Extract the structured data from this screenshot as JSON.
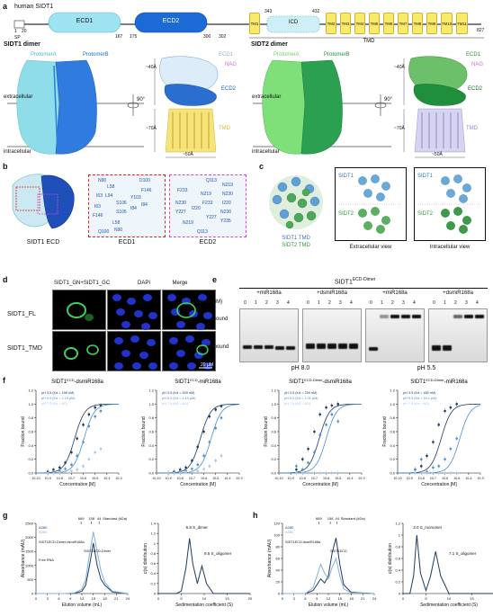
{
  "panels": {
    "a": "a",
    "b": "b",
    "c": "c",
    "d": "d",
    "e": "e",
    "f": "f",
    "g": "g",
    "h": "h"
  },
  "panel_a": {
    "title": "human SIDT1",
    "domains": [
      "SP",
      "ECD1",
      "ECD2",
      "ICD",
      "TMD"
    ],
    "residues": [
      "1",
      "20",
      "167",
      "175",
      "300",
      "302",
      "343",
      "432",
      "827"
    ],
    "tm_labels": [
      "TM1",
      "TM2",
      "TM3",
      "TM4",
      "TM5",
      "TM6",
      "TM7",
      "TM8",
      "TM9",
      "TM10",
      "TM11"
    ],
    "sidt1_dimer": {
      "title": "SIDT1 dimer",
      "protomer_a": "ProtomerA",
      "protomer_b": "ProtomerB",
      "extracellular": "extracellular",
      "intracellular": "intracellular",
      "rotation": "90°",
      "labels": [
        "ECD1",
        "NAG",
        "ECD2",
        "TMD"
      ],
      "dims": [
        "~40Å",
        "~70Å",
        "~50Å"
      ]
    },
    "sidt2_dimer": {
      "title": "SIDT2 dimer",
      "protomer_a": "ProtomerA",
      "protomer_b": "ProtomerB",
      "extracellular": "extracellular",
      "intracellular": "intracellular",
      "rotation": "90°",
      "labels": [
        "ECD1",
        "NAG",
        "ECD2",
        "TMD"
      ],
      "dims": [
        "~40Å",
        "~70Å",
        "~50Å"
      ]
    }
  },
  "panel_b": {
    "captions": [
      "SIDT1 ECD",
      "ECD1",
      "ECD2"
    ],
    "ecd1_residues": [
      "N90",
      "L58",
      "D100",
      "F146",
      "I63",
      "Y103",
      "S106",
      "L94",
      "I63",
      "F146",
      "S105",
      "I84",
      "Q100",
      "I84",
      "N90",
      "L58"
    ],
    "ecd2_residues": [
      "Q113",
      "N219",
      "F233",
      "N230",
      "N219",
      "N230",
      "Y227",
      "F233",
      "I220",
      "N230",
      "N219",
      "Y227",
      "Q113",
      "Y235",
      "I220"
    ]
  },
  "panel_c": {
    "tmd_label_1": "SIDT1 TMD",
    "tmd_label_2": "SIDT2 TMD",
    "view_labels": [
      "Extracellular view",
      "Intracellular view"
    ],
    "box_labels": [
      "SIDT1",
      "SIDT2",
      "SIDT1",
      "SIDT2"
    ]
  },
  "panel_d": {
    "columns": [
      "SIDT1_GN+SIDT1_GC",
      "DAPI",
      "Merge"
    ],
    "rows": [
      "SIDT1_FL",
      "SIDT1_TMD"
    ],
    "scale": "20 µM"
  },
  "panel_e": {
    "title": "SIDT1",
    "title_sup": "ECD-Dimer",
    "groups": [
      "+miR168a",
      "+dsmiR168a",
      "+miR168a",
      "+dsmiR168a"
    ],
    "protein_label": "Protein (µM)",
    "lanes": [
      "0",
      "1",
      "2",
      "3",
      "4"
    ],
    "row_labels": [
      "Bound",
      "Unbound"
    ],
    "ph_labels": [
      "pH 8.0",
      "pH 5.5"
    ]
  },
  "chart_data": [
    {
      "type": "scatter",
      "title": "SIDT1",
      "title_sup": "ECD",
      "title_suffix": "-dsmiR168a",
      "xlabel": "Concentration [M]",
      "ylabel": "Fraction bound",
      "xscale": "log",
      "xlim": [
        1e-10,
        0.001
      ],
      "ylim": [
        0,
        1.2
      ],
      "legend": [
        "pH 3.5 (Kd = 186 nM)",
        "pH 5.5 (Kd = 1.15 µM)",
        "pH 7.5 (Kd = ND)"
      ],
      "series": [
        {
          "name": "pH 3.5 (Kd = 186 nM)",
          "color": "#1f3a60",
          "kd": 1.86e-07,
          "x": [
            1e-09,
            3e-09,
            1e-08,
            3e-08,
            1e-07,
            3e-07,
            1e-06,
            3e-06,
            1e-05,
            3e-05
          ],
          "y": [
            0.02,
            0.05,
            0.08,
            0.15,
            0.3,
            0.5,
            0.7,
            0.85,
            0.95,
            0.98
          ]
        },
        {
          "name": "pH 5.5 (Kd = 1.15 µM)",
          "color": "#4a8fcf",
          "kd": 1.15e-06,
          "x": [
            1e-09,
            3e-09,
            1e-08,
            3e-08,
            1e-07,
            3e-07,
            1e-06,
            3e-06,
            1e-05,
            3e-05
          ],
          "y": [
            0.0,
            0.02,
            0.03,
            0.06,
            0.12,
            0.25,
            0.45,
            0.68,
            0.82,
            0.9
          ]
        },
        {
          "name": "pH 7.5 (Kd = ND)",
          "color": "#a8c6e6",
          "kd": null,
          "x": [
            1e-09,
            3e-09,
            1e-08,
            3e-08,
            1e-07,
            3e-07,
            1e-06,
            3e-06,
            1e-05,
            3e-05
          ],
          "y": [
            0.0,
            0.0,
            0.01,
            0.02,
            0.03,
            0.05,
            0.1,
            0.2,
            0.3,
            0.35
          ]
        }
      ]
    },
    {
      "type": "scatter",
      "title": "SIDT1",
      "title_sup": "ECD",
      "title_suffix": "-miR168a",
      "xlabel": "Concentration [M]",
      "ylabel": "Fraction bound",
      "xscale": "log",
      "xlim": [
        1e-10,
        0.001
      ],
      "ylim": [
        0,
        1.2
      ],
      "legend": [
        "pH 3.5 (Kd = 509 nM)",
        "pH 5.5 (Kd = 4.13 µM)",
        "pH 7.5 (Kd = ND)"
      ],
      "series": [
        {
          "name": "pH 3.5 (Kd = 509 nM)",
          "color": "#1f3a60",
          "kd": 5.09e-07,
          "x": [
            1e-09,
            3e-09,
            1e-08,
            3e-08,
            1e-07,
            3e-07,
            1e-06,
            3e-06,
            1e-05,
            3e-05
          ],
          "y": [
            0.0,
            0.02,
            0.05,
            0.08,
            0.18,
            0.38,
            0.6,
            0.82,
            0.92,
            0.97
          ]
        },
        {
          "name": "pH 5.5 (Kd = 4.13 µM)",
          "color": "#4a8fcf",
          "kd": 4.13e-06,
          "x": [
            1e-09,
            3e-09,
            1e-08,
            3e-08,
            1e-07,
            3e-07,
            1e-06,
            3e-06,
            1e-05,
            3e-05
          ],
          "y": [
            0.0,
            0.0,
            0.02,
            0.03,
            0.06,
            0.12,
            0.25,
            0.45,
            0.65,
            0.8
          ]
        },
        {
          "name": "pH 7.5 (Kd = ND)",
          "color": "#a8c6e6",
          "kd": null,
          "x": [
            1e-09,
            3e-09,
            1e-08,
            3e-08,
            1e-07,
            3e-07,
            1e-06,
            3e-06,
            1e-05,
            3e-05
          ],
          "y": [
            0.0,
            0.0,
            0.0,
            0.01,
            0.02,
            0.03,
            0.06,
            0.1,
            0.18,
            0.25
          ]
        }
      ]
    },
    {
      "type": "scatter",
      "title": "SIDT1",
      "title_sup": "ECD-Dimer",
      "title_suffix": "-dsmiR168a",
      "xlabel": "Concentration [M]",
      "ylabel": "Fraction bound",
      "xscale": "log",
      "xlim": [
        1e-10,
        0.001
      ],
      "ylim": [
        0,
        1.2
      ],
      "legend": [
        "pH 3.5 (Kd = 259 nM)",
        "pH 5.5 (Kd = 1.01 µM)",
        "pH 7.5 (Kd = ND)"
      ],
      "series": [
        {
          "name": "pH 3.5 (Kd = 259 nM)",
          "color": "#1f3a60",
          "kd": 2.59e-07,
          "x": [
            3e-09,
            1e-08,
            3e-08,
            1e-07,
            3e-07,
            1e-06,
            3e-06,
            1e-05
          ],
          "y": [
            0.05,
            0.2,
            0.35,
            0.6,
            0.85,
            0.95,
            0.98,
            1.0
          ]
        },
        {
          "name": "pH 5.5 (Kd = 1.01 µM)",
          "color": "#4a8fcf",
          "kd": 1.01e-06,
          "x": [
            3e-09,
            1e-08,
            3e-08,
            1e-07,
            3e-07,
            1e-06,
            3e-06,
            1e-05
          ],
          "y": [
            0.1,
            0.05,
            0.15,
            0.3,
            0.55,
            0.7,
            0.85,
            0.75
          ]
        },
        {
          "name": "pH 7.5 (Kd = ND)",
          "color": "#a8c6e6",
          "kd": null,
          "x": [
            3e-09,
            1e-08,
            3e-08,
            1e-07,
            3e-07,
            1e-06,
            3e-06,
            1e-05
          ],
          "y": [
            0.0,
            0.0,
            0.0,
            0.0,
            0.0,
            0.0,
            0.0,
            0.0
          ]
        }
      ]
    },
    {
      "type": "scatter",
      "title": "SIDT1",
      "title_sup": "ECD-Dimer",
      "title_suffix": "-miR168a",
      "xlabel": "Concentration [M]",
      "ylabel": "Fraction bound",
      "xscale": "log",
      "xlim": [
        1e-10,
        0.001
      ],
      "ylim": [
        0,
        1.2
      ],
      "legend": [
        "pH 3.5 (Kd = 480 nM)",
        "pH 5.5 (Kd = 18.1 µM)",
        "pH 7.5 (Kd = ND)"
      ],
      "series": [
        {
          "name": "pH 3.5 (Kd = 480 nM)",
          "color": "#1f3a60",
          "kd": 4.8e-07,
          "x": [
            3e-09,
            1e-08,
            3e-08,
            1e-07,
            3e-07,
            1e-06,
            3e-06,
            1e-05
          ],
          "y": [
            0.05,
            0.1,
            0.25,
            0.45,
            0.7,
            0.9,
            0.95,
            1.0
          ]
        },
        {
          "name": "pH 5.5 (Kd = 18.1 µM)",
          "color": "#4a8fcf",
          "kd": 1.81e-05,
          "x": [
            3e-09,
            1e-08,
            3e-08,
            1e-07,
            3e-07,
            1e-06,
            3e-06,
            1e-05
          ],
          "y": [
            0.05,
            0.2,
            0.02,
            0.08,
            0.1,
            0.2,
            0.35,
            0.5
          ]
        },
        {
          "name": "pH 7.5 (Kd = ND)",
          "color": "#a8c6e6",
          "kd": null,
          "x": [
            3e-09,
            1e-08,
            3e-08,
            1e-07,
            3e-07,
            1e-06,
            3e-06,
            1e-05
          ],
          "y": [
            0.0,
            0.0,
            0.0,
            0.0,
            0.0,
            0.0,
            0.0,
            0.0
          ]
        }
      ]
    },
    {
      "type": "line",
      "title": "",
      "xlabel": "Elution volume (mL)",
      "ylabel": "Absorbance (mAU)",
      "xlim": [
        0,
        24
      ],
      "ylim": [
        0,
        2500
      ],
      "xticks": [
        0,
        3,
        6,
        9,
        12,
        15,
        18,
        21,
        24
      ],
      "yticks": [
        0,
        500,
        1000,
        1500,
        2000,
        2500
      ],
      "standards": {
        "label": "Standard (kDa)",
        "values": [
          669,
          158,
          44
        ],
        "positions": [
          11.8,
          14.5,
          16.5
        ]
      },
      "legend": [
        "A280",
        "A260"
      ],
      "annotations": [
        "SIDT1ECD-Dimer-dsmiR168a",
        "SIDT1ECD-Dimer",
        "Free RNA"
      ],
      "series": [
        {
          "name": "A280",
          "color": "#1f3a60",
          "x": [
            0,
            8,
            10,
            12,
            13,
            14,
            15,
            16,
            17,
            18,
            20,
            24
          ],
          "y": [
            0,
            0,
            10,
            80,
            300,
            1000,
            1800,
            1000,
            500,
            300,
            50,
            0
          ]
        },
        {
          "name": "A260",
          "color": "#7fb0dc",
          "x": [
            0,
            8,
            10,
            12,
            13,
            14,
            15,
            16,
            17,
            18,
            20,
            24
          ],
          "y": [
            0,
            0,
            20,
            150,
            500,
            1400,
            2200,
            1500,
            800,
            400,
            80,
            0
          ]
        }
      ]
    },
    {
      "type": "line",
      "title": "",
      "xlabel": "Sedimentation coefficient (S)",
      "ylabel": "c(s) distribution",
      "xlim": [
        0,
        20
      ],
      "ylim": [
        0,
        1.4
      ],
      "xticks": [
        0,
        5,
        10,
        15,
        20
      ],
      "yticks": [
        0,
        0.2,
        0.4,
        0.6,
        0.8,
        1.0,
        1.2,
        1.4
      ],
      "annotations": [
        "6.8 S_dimer",
        "9.5 S_oligomer"
      ],
      "series": [
        {
          "name": "",
          "color": "#1f3a60",
          "x": [
            0,
            4,
            5,
            6,
            6.8,
            7.5,
            8.5,
            9.5,
            10.5,
            12,
            20
          ],
          "y": [
            0,
            0,
            0.05,
            0.5,
            1.1,
            0.6,
            0.2,
            0.55,
            0.2,
            0,
            0
          ]
        }
      ]
    },
    {
      "type": "line",
      "title": "",
      "xlabel": "Elution volume (mL)",
      "ylabel": "Absorbance (mAU)",
      "xlim": [
        0,
        24
      ],
      "ylim": [
        0,
        120
      ],
      "xticks": [
        0,
        3,
        6,
        9,
        12,
        15,
        18,
        21,
        24
      ],
      "yticks": [
        0,
        20,
        40,
        60,
        80,
        100,
        120
      ],
      "standards": {
        "label": "Standard (kDa)",
        "values": [
          669,
          158,
          44
        ],
        "positions": [
          9.5,
          12.5,
          14.3
        ]
      },
      "legend": [
        "A280",
        "A260"
      ],
      "annotations": [
        "SIDT1ECD-dsmiR168a",
        "SIDT1ECD"
      ],
      "series": [
        {
          "name": "A280",
          "color": "#1f3a60",
          "x": [
            0,
            6,
            8,
            9,
            10,
            11,
            12,
            13,
            14,
            15,
            16,
            18,
            24
          ],
          "y": [
            0,
            0,
            5,
            15,
            25,
            18,
            30,
            70,
            95,
            50,
            15,
            2,
            0
          ]
        },
        {
          "name": "A260",
          "color": "#7fb0dc",
          "x": [
            0,
            6,
            8,
            9,
            10,
            11,
            12,
            13,
            14,
            15,
            16,
            18,
            24
          ],
          "y": [
            0,
            0,
            10,
            30,
            50,
            35,
            25,
            45,
            60,
            30,
            8,
            1,
            0
          ]
        }
      ]
    },
    {
      "type": "line",
      "title": "",
      "xlabel": "Sedimentation coefficient (S)",
      "ylabel": "c(s) distribution",
      "xlim": [
        0,
        20
      ],
      "ylim": [
        0,
        1.2
      ],
      "xticks": [
        0,
        5,
        10,
        15,
        20
      ],
      "yticks": [
        0,
        0.2,
        0.4,
        0.6,
        0.8,
        1.0,
        1.2
      ],
      "annotations": [
        "3.0 S_monomer",
        "7.1 S_oligomer"
      ],
      "series": [
        {
          "name": "",
          "color": "#1f3a60",
          "x": [
            0,
            1.5,
            2.3,
            3.0,
            3.8,
            5,
            6,
            7.1,
            8.2,
            10,
            20
          ],
          "y": [
            0,
            0,
            0.3,
            1.0,
            0.35,
            0.05,
            0.3,
            0.72,
            0.3,
            0,
            0
          ]
        }
      ]
    }
  ]
}
